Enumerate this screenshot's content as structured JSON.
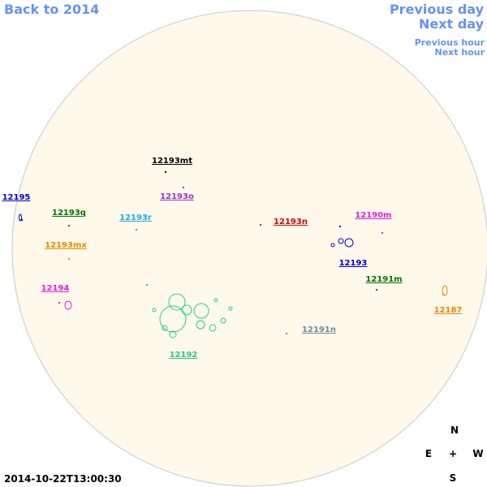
{
  "nav": {
    "back": "Back to 2014",
    "previous_day": "Previous day",
    "next_day": "Next day",
    "previous_hour": "Previous hour",
    "next_hour": "Next hour"
  },
  "regions": [
    {
      "label": "12195",
      "color": "#0000cc"
    },
    {
      "label": "12193mt",
      "color": "#000000"
    },
    {
      "label": "12193o",
      "color": "#9933cc"
    },
    {
      "label": "12193q",
      "color": "#007700"
    },
    {
      "label": "12193r",
      "color": "#22aadd"
    },
    {
      "label": "12193n",
      "color": "#dd0000"
    },
    {
      "label": "12190m",
      "color": "#dd22dd"
    },
    {
      "label": "12193mx",
      "color": "#ee8800"
    },
    {
      "label": "12193",
      "color": "#0000cc"
    },
    {
      "label": "12191m",
      "color": "#007700"
    },
    {
      "label": "12194",
      "color": "#dd22dd"
    },
    {
      "label": "12187",
      "color": "#ee8800"
    },
    {
      "label": "12191n",
      "color": "#778899"
    },
    {
      "label": "12192",
      "color": "#22cc88"
    }
  ],
  "compass": {
    "north": "N",
    "east": "E",
    "center": "+",
    "west": "W",
    "south": "S"
  },
  "timestamp": "2014-10-22T13:00:30"
}
